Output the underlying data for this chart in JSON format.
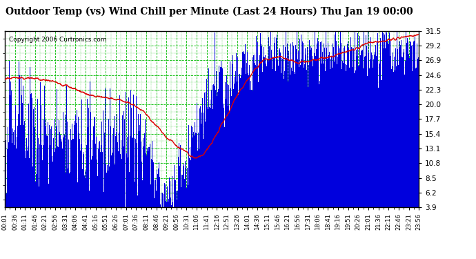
{
  "title": "Outdoor Temp (vs) Wind Chill per Minute (Last 24 Hours) Thu Jan 19 00:00",
  "copyright": "Copyright 2006 Curtronics.com",
  "yticks": [
    3.9,
    6.2,
    8.5,
    10.8,
    13.1,
    15.4,
    17.7,
    20.0,
    22.3,
    24.6,
    26.9,
    29.2,
    31.5
  ],
  "ymin": 3.9,
  "ymax": 31.5,
  "bg_color": "#ffffff",
  "plot_bg_color": "#ffffff",
  "bar_color": "#0000dd",
  "line_color": "#dd0000",
  "grid_color": "#00bb00",
  "title_fontsize": 10,
  "copyright_fontsize": 6.5,
  "xtick_fontsize": 6,
  "ytick_fontsize": 7.5,
  "n_points": 1440,
  "xtick_labels": [
    "00:01",
    "00:36",
    "01:11",
    "01:46",
    "02:21",
    "02:56",
    "03:31",
    "04:06",
    "04:41",
    "05:16",
    "05:51",
    "06:26",
    "07:01",
    "07:36",
    "08:11",
    "08:46",
    "09:21",
    "09:56",
    "10:31",
    "11:06",
    "11:41",
    "12:16",
    "12:51",
    "13:26",
    "14:01",
    "14:36",
    "15:11",
    "15:46",
    "16:21",
    "16:56",
    "17:31",
    "18:06",
    "18:41",
    "19:16",
    "19:51",
    "20:26",
    "21:01",
    "21:36",
    "22:11",
    "22:46",
    "23:21",
    "23:56"
  ]
}
